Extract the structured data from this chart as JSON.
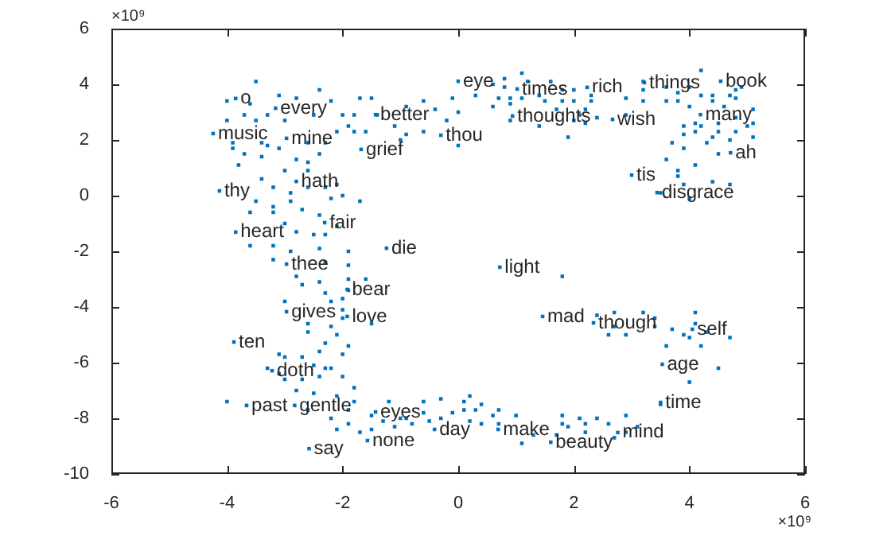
{
  "chart_data": {
    "type": "scatter",
    "marker": "square",
    "xlim": [
      -6,
      6
    ],
    "ylim": [
      -10,
      6
    ],
    "xticks": [
      -6,
      -4,
      -2,
      0,
      2,
      4,
      6
    ],
    "yticks": [
      -10,
      -8,
      -6,
      -4,
      -2,
      0,
      2,
      4,
      6
    ],
    "annotations": [
      "×10⁹",
      "×10⁹"
    ],
    "series": [
      {
        "color": "#0072bd",
        "marker": "square",
        "x": [
          -3.85,
          -3.16,
          -4.24,
          -2.97,
          -1.43,
          -1.68,
          -0.3,
          0.0,
          1.02,
          2.23,
          3.22,
          4.54,
          0.94,
          2.67,
          4.19,
          4.71,
          3.0,
          3.44,
          -4.13,
          -2.8,
          -3.85,
          -2.31,
          -1.24,
          -2.97,
          -1.92,
          0.72,
          -2.97,
          -1.92,
          1.46,
          2.34,
          4.05,
          -3.88,
          -3.22,
          3.53,
          -3.66,
          -2.83,
          -1.43,
          3.5,
          -0.41,
          0.69,
          2.76,
          -2.58,
          -1.57,
          1.6
        ],
        "values": [
          3.49,
          3.14,
          2.23,
          2.06,
          2.91,
          1.66,
          2.17,
          4.11,
          3.83,
          3.89,
          4.06,
          4.11,
          2.86,
          2.74,
          2.91,
          1.54,
          0.74,
          0.11,
          0.17,
          0.51,
          -1.31,
          -0.97,
          -1.89,
          -2.46,
          -3.37,
          -2.57,
          -4.17,
          -4.34,
          -4.34,
          -4.57,
          -4.8,
          -5.26,
          -6.29,
          -6.06,
          -7.54,
          -7.54,
          -7.77,
          -7.43,
          -8.4,
          -8.4,
          -8.51,
          -9.09,
          -8.8,
          -8.86
        ],
        "value_labels": [
          "o",
          "every",
          "music",
          "mine",
          "better",
          "grief",
          "thou",
          "eye",
          "times",
          "rich",
          "things",
          "book",
          "thoughts",
          "wish",
          "many",
          "ah",
          "tis",
          "disgrace",
          "thy",
          "hath",
          "heart",
          "fair",
          "die",
          "thee",
          "bear",
          "light",
          "gives",
          "love",
          "mad",
          "though",
          "self",
          "ten",
          "doth",
          "age",
          "past",
          "gentle",
          "eyes",
          "time",
          "day",
          "make",
          "mind",
          "say",
          "none",
          "beauty"
        ]
      },
      {
        "color": "#0072bd",
        "x": [
          -3.5,
          -4.0,
          -3.6,
          -3.1,
          -2.4,
          -2.8,
          -4.0,
          -3.7,
          -3.5,
          -3.3,
          -3.0,
          -2.5,
          -2.2,
          -2.0,
          -1.8,
          -1.7,
          -1.5,
          -1.4,
          -0.9,
          -0.6,
          -0.1,
          0.0,
          -0.2,
          -0.6,
          -0.9,
          -1.0,
          -1.1,
          -1.6,
          -1.8,
          -2.1,
          -1.9,
          -2.6,
          -2.3,
          -3.9,
          -3.9,
          -3.7,
          -3.3,
          -3.1,
          -3.4,
          -2.8,
          -2.6,
          -2.4,
          -3.8,
          -3.4,
          -3.0,
          -2.6,
          -3.4,
          -3.2,
          -2.9,
          -2.6,
          -2.3,
          -2.1,
          -2.0,
          -2.2,
          -3.5,
          -2.9,
          -3.2,
          -2.7,
          -2.4,
          -1.7,
          -3.6,
          -3.2,
          -3.0,
          -2.1,
          -2.8,
          -2.5,
          -2.3,
          -3.6,
          -3.2,
          -2.9,
          -2.4,
          -1.9,
          -3.2,
          -2.3,
          -1.9,
          -2.8,
          -1.9,
          -1.6,
          -2.7,
          -2.4,
          -1.9,
          -2.3,
          -2.0,
          -3.0,
          -2.2,
          -2.0,
          -2.6,
          -2.2,
          -2.0,
          -1.5,
          -2.6,
          -2.1,
          -2.3,
          -2.4,
          -1.9,
          -2.0,
          -3.1,
          -3.0,
          -2.7,
          -3.3,
          -3.1,
          -2.5,
          -2.3,
          -2.2,
          -2.4,
          -2.0,
          -3.0,
          -2.7,
          -1.8,
          -2.8,
          -2.5,
          -4.0,
          -2.1,
          -1.8,
          -1.2,
          -0.6,
          -0.3,
          0.2,
          0.1,
          -2.6,
          -1.9,
          -2.2,
          -1.5,
          -1.3,
          -1.0,
          -0.9,
          -0.6,
          -0.3,
          -0.1,
          0.1,
          0.3,
          -1.9,
          -1.7,
          -1.5,
          -1.1,
          -0.8,
          -0.5,
          0.2,
          -2.1,
          -0.4,
          0.0,
          0.3,
          0.6,
          0.8,
          0.8,
          1.1,
          1.2,
          0.7,
          0.6,
          0.9,
          0.9,
          1.1,
          1.4,
          1.6,
          1.5,
          1.8,
          2.0,
          1.8,
          1.7,
          2.0,
          2.3,
          2.3,
          2.2,
          2.0,
          2.1,
          2.4,
          2.2,
          1.4,
          0.9,
          1.9,
          2.9,
          2.9,
          3.2,
          3.2,
          3.2,
          3.6,
          3.6,
          3.8,
          3.8,
          4.0,
          4.2,
          4.2,
          4.0,
          4.4,
          4.4,
          4.6,
          4.7,
          4.8,
          4.8,
          4.9,
          5.1,
          5.1,
          5.1,
          5.0,
          4.8,
          4.8,
          4.7,
          4.5,
          4.5,
          4.4,
          4.5,
          4.3,
          4.1,
          4.2,
          4.1,
          3.9,
          3.9,
          3.9,
          3.7,
          4.1,
          3.6,
          3.8,
          3.8,
          3.5,
          3.9,
          4.0,
          4.4,
          4.7,
          1.8,
          2.4,
          2.7,
          2.6,
          2.7,
          2.9,
          3.2,
          3.4,
          3.4,
          3.7,
          3.6,
          3.9,
          4.0,
          4.1,
          4.1,
          4.3,
          4.2,
          4.7,
          4.5,
          4.0,
          3.5,
          0.4,
          0.6,
          0.7,
          1.0,
          0.4,
          0.7,
          1.1,
          1.3,
          1.8,
          1.8,
          1.9,
          2.1,
          1.7,
          2.2,
          2.2,
          2.4,
          2.6,
          2.7,
          2.9,
          2.9,
          3.1
        ],
        "values": [
          4.1,
          3.4,
          3.3,
          3.6,
          3.8,
          3.5,
          2.7,
          2.9,
          2.7,
          2.9,
          2.7,
          2.9,
          3.4,
          2.9,
          2.9,
          3.5,
          3.5,
          2.9,
          3.2,
          3.4,
          3.5,
          3.0,
          2.7,
          2.3,
          2.2,
          2.0,
          2.5,
          2.3,
          2.3,
          2.3,
          2.5,
          1.9,
          1.9,
          1.9,
          1.7,
          1.5,
          1.8,
          1.7,
          1.9,
          1.3,
          1.2,
          1.5,
          1.1,
          1.4,
          0.9,
          0.9,
          0.6,
          0.3,
          0.1,
          0.3,
          0.3,
          0.4,
          0.0,
          -0.1,
          -0.2,
          -0.2,
          -0.4,
          -0.5,
          -0.7,
          -0.2,
          -0.6,
          -0.6,
          -1.0,
          -1.1,
          -1.3,
          -1.4,
          -1.4,
          -1.8,
          -1.8,
          -2.0,
          -1.9,
          -2.0,
          -2.3,
          -2.4,
          -2.5,
          -2.9,
          -3.0,
          -3.0,
          -3.2,
          -3.1,
          -3.4,
          -3.5,
          -3.7,
          -3.8,
          -3.8,
          -4.1,
          -4.6,
          -4.7,
          -4.4,
          -4.6,
          -4.9,
          -5.0,
          -5.3,
          -5.6,
          -5.4,
          -5.7,
          -5.7,
          -5.8,
          -5.8,
          -6.2,
          -6.4,
          -6.1,
          -6.2,
          -6.2,
          -6.5,
          -6.5,
          -6.6,
          -6.6,
          -6.9,
          -7.0,
          -7.1,
          -7.4,
          -7.2,
          -7.4,
          -7.4,
          -7.4,
          -7.3,
          -7.2,
          -7.4,
          -7.7,
          -7.7,
          -8.0,
          -7.9,
          -8.1,
          -8.0,
          -8.0,
          -7.8,
          -8.0,
          -7.8,
          -7.7,
          -7.7,
          -8.2,
          -8.5,
          -8.4,
          -8.3,
          -8.2,
          -8.1,
          -8.1,
          -8.4,
          3.1,
          1.8,
          3.6,
          4.0,
          4.2,
          3.9,
          4.4,
          4.1,
          3.5,
          3.2,
          3.5,
          3.3,
          3.5,
          3.6,
          4.1,
          3.4,
          3.8,
          3.8,
          3.4,
          3.1,
          3.4,
          3.4,
          3.6,
          3.1,
          2.7,
          2.9,
          2.8,
          2.6,
          2.5,
          2.7,
          2.1,
          3.5,
          2.9,
          4.1,
          3.8,
          3.4,
          3.9,
          3.4,
          3.4,
          3.7,
          3.9,
          4.5,
          3.6,
          3.2,
          3.6,
          3.4,
          3.2,
          3.6,
          3.5,
          3.8,
          3.9,
          3.1,
          2.6,
          2.1,
          2.5,
          2.8,
          2.3,
          2.0,
          2.6,
          2.3,
          2.1,
          1.5,
          1.9,
          2.3,
          2.5,
          2.6,
          2.5,
          2.2,
          1.7,
          1.9,
          1.1,
          1.3,
          0.9,
          0.7,
          0.1,
          0.4,
          -0.1,
          0.5,
          0.4,
          -2.9,
          -4.3,
          -4.2,
          -5.0,
          -4.7,
          -5.0,
          -4.2,
          -4.4,
          -4.7,
          -4.8,
          -5.4,
          -5.0,
          -5.1,
          -4.2,
          -4.6,
          -4.9,
          -5.4,
          -5.1,
          -6.2,
          -6.7,
          -7.5,
          -7.5,
          -7.9,
          -7.7,
          -7.9,
          -8.2,
          -8.2,
          -8.9,
          -8.6,
          -7.9,
          -8.2,
          -8.3,
          -8.0,
          -8.6,
          -8.5,
          -8.2,
          -8.0,
          -8.2,
          -8.7,
          -7.9,
          -8.5,
          -8.3
        ]
      }
    ]
  }
}
